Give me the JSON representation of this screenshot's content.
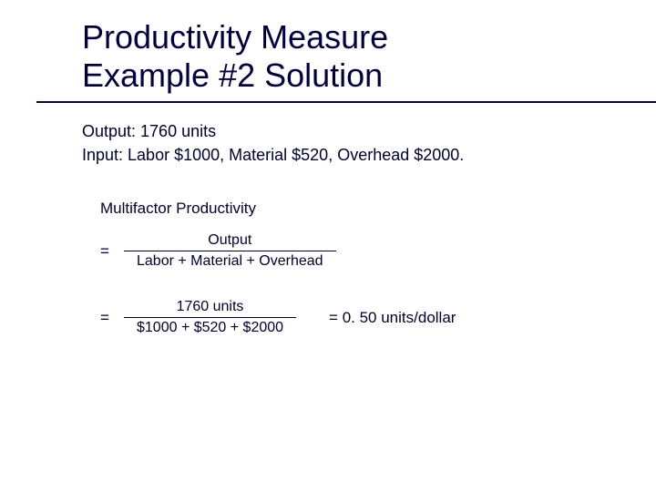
{
  "title_line1": "Productivity Measure",
  "title_line2": "Example #2 Solution",
  "body": {
    "output_line": "Output: 1760 units",
    "input_line": "Input: Labor $1000, Material $520, Overhead $2000."
  },
  "section_label": "Multifactor Productivity",
  "formula1": {
    "numerator": "Output",
    "denominator": "Labor + Material + Overhead"
  },
  "formula2": {
    "numerator": "1760 units",
    "denominator": "$1000 + $520 + $2000",
    "result": "= 0. 50 units/dollar"
  },
  "colors": {
    "text": "#000033",
    "rule": "#000066",
    "background": "#ffffff"
  },
  "fonts": {
    "title_size_pt": 36,
    "body_size_pt": 18,
    "section_size_pt": 17,
    "formula_size_pt": 16
  }
}
